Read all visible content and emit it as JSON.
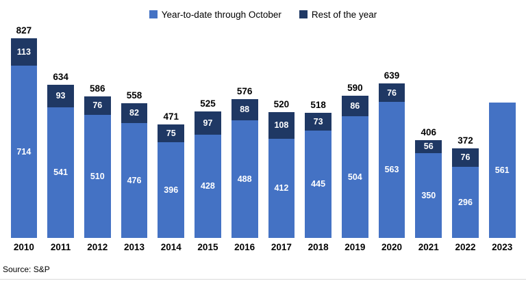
{
  "legend": [
    {
      "label": "Year-to-date through October",
      "color": "#4472C4"
    },
    {
      "label": "Rest of the year",
      "color": "#1F3864"
    }
  ],
  "source": "Source: S&P",
  "chart_data": {
    "type": "bar",
    "stacked": true,
    "title": "",
    "xlabel": "",
    "ylabel": "",
    "legend_position": "top",
    "grid": false,
    "ylim": [
      0,
      850
    ],
    "categories": [
      "2010",
      "2011",
      "2012",
      "2013",
      "2014",
      "2015",
      "2016",
      "2017",
      "2018",
      "2019",
      "2020",
      "2021",
      "2022",
      "2023"
    ],
    "series": [
      {
        "name": "Year-to-date through October",
        "color": "#4472C4",
        "values": [
          714,
          541,
          510,
          476,
          396,
          428,
          488,
          412,
          445,
          504,
          563,
          350,
          296,
          561
        ]
      },
      {
        "name": "Rest of the year",
        "color": "#1F3864",
        "values": [
          113,
          93,
          76,
          82,
          75,
          97,
          88,
          108,
          73,
          86,
          76,
          56,
          76,
          null
        ]
      }
    ],
    "totals": [
      827,
      634,
      586,
      558,
      471,
      525,
      576,
      520,
      518,
      590,
      639,
      406,
      372,
      null
    ]
  }
}
